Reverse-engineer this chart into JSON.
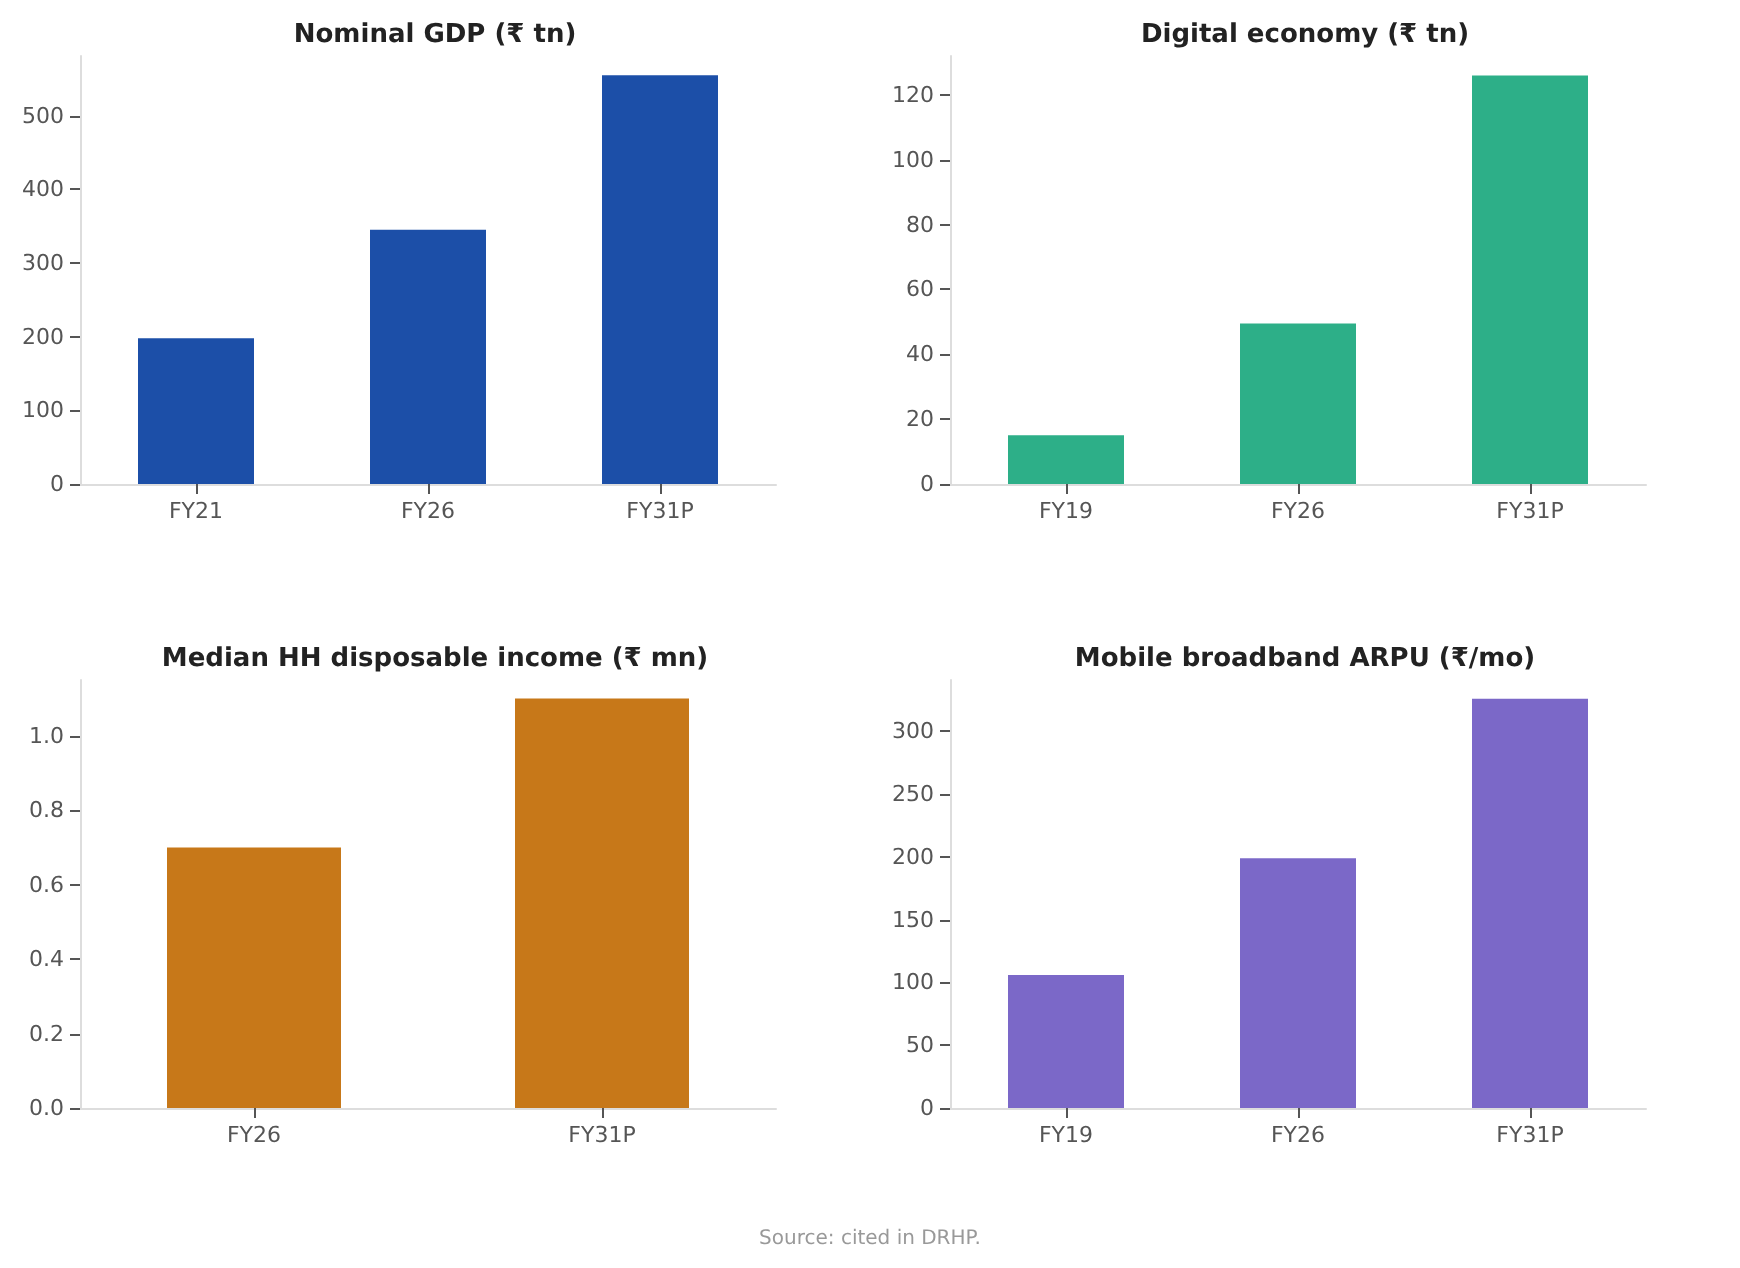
{
  "chart_data": [
    {
      "type": "bar",
      "title": "Nominal GDP (₹ tn)",
      "categories": [
        "FY21",
        "FY26",
        "FY31P"
      ],
      "values": [
        198,
        345,
        555
      ],
      "color": "#1c4fa8",
      "ylim": [
        0,
        581
      ],
      "yticks": [
        0,
        100,
        200,
        300,
        400,
        500
      ],
      "grid": false
    },
    {
      "type": "bar",
      "title": "Digital economy (₹ tn)",
      "categories": [
        "FY19",
        "FY26",
        "FY31P"
      ],
      "values": [
        15,
        49.5,
        126
      ],
      "color": "#2daf88",
      "ylim": [
        0,
        132
      ],
      "yticks": [
        0,
        20,
        40,
        60,
        80,
        100,
        120
      ],
      "grid": false
    },
    {
      "type": "bar",
      "title": "Median HH disposable income (₹ mn)",
      "categories": [
        "FY26",
        "FY31P"
      ],
      "values": [
        0.7,
        1.1
      ],
      "color": "#c77819",
      "ylim": [
        0,
        1.15
      ],
      "yticks": [
        {
          "value": 0,
          "label": "0.0"
        },
        {
          "value": 0.2,
          "label": "0.2"
        },
        {
          "value": 0.4,
          "label": "0.4"
        },
        {
          "value": 0.6,
          "label": "0.6"
        },
        {
          "value": 0.8,
          "label": "0.8"
        },
        {
          "value": 1,
          "label": "1.0"
        }
      ],
      "grid": false,
      "annotations": [
        "Source: cited in DRHP."
      ]
    },
    {
      "type": "bar",
      "title": "Mobile broadband ARPU (₹/mo)",
      "categories": [
        "FY19",
        "FY26",
        "FY31P"
      ],
      "values": [
        106,
        199,
        326
      ],
      "color": "#7b68c8",
      "ylim": [
        0,
        341
      ],
      "yticks": [
        0,
        50,
        100,
        150,
        200,
        250,
        300
      ],
      "grid": false
    }
  ]
}
